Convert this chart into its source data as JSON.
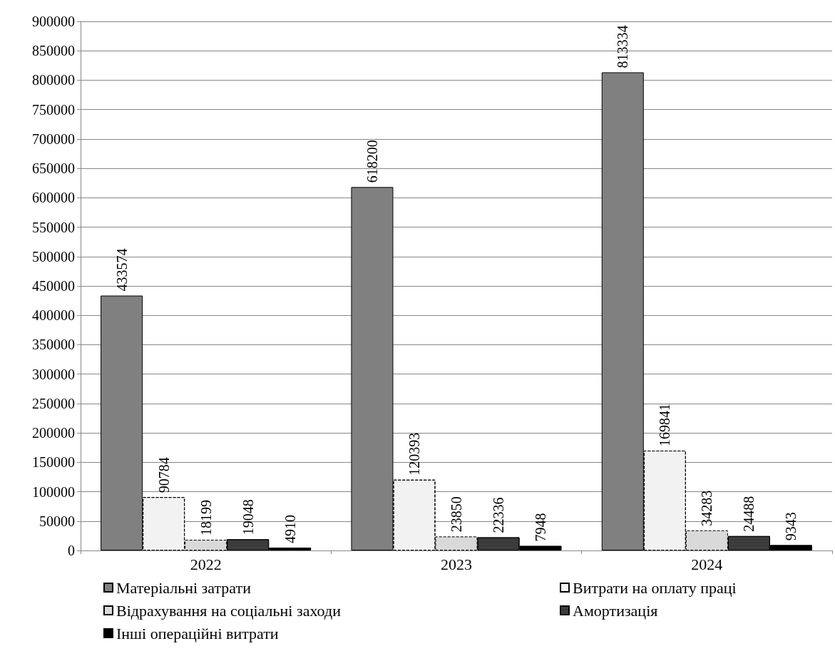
{
  "chart_data": {
    "type": "bar",
    "categories": [
      "2022",
      "2023",
      "2024"
    ],
    "series": [
      {
        "name": "Матеріальні затрати",
        "color": "#808080",
        "values": [
          433574,
          618200,
          813334
        ]
      },
      {
        "name": "Витрати на оплату праці",
        "color": "#f2f2f2",
        "values": [
          90784,
          120393,
          169841
        ]
      },
      {
        "name": "Відрахування на соціальні заходи",
        "color": "#d9d9d9",
        "values": [
          18199,
          23850,
          34283
        ]
      },
      {
        "name": "Амортизація",
        "color": "#404040",
        "values": [
          19048,
          22336,
          24488
        ]
      },
      {
        "name": "Інші операційні витрати",
        "color": "#000000",
        "values": [
          4910,
          7948,
          9343
        ]
      }
    ],
    "ylim": [
      0,
      900000
    ],
    "yticks": [
      0,
      50000,
      100000,
      150000,
      200000,
      250000,
      300000,
      350000,
      400000,
      450000,
      500000,
      550000,
      600000,
      650000,
      700000,
      750000,
      800000,
      850000,
      900000
    ],
    "grid": "y",
    "legend": "bottom",
    "data_labels": true
  }
}
